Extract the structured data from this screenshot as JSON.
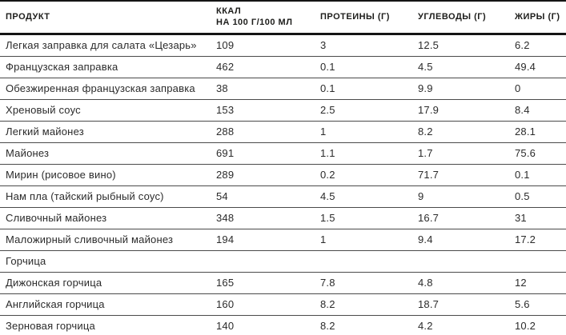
{
  "table": {
    "title": "nutrition-facts-table",
    "columns": [
      {
        "label": "ПРОДУКТ"
      },
      {
        "label": "ККАЛ\nНА 100 Г/100 МЛ"
      },
      {
        "label": "ПРОТЕИНЫ (Г)"
      },
      {
        "label": "УГЛЕВОДЫ (Г)"
      },
      {
        "label": "ЖИРЫ (Г)"
      }
    ],
    "rows": [
      {
        "product": "Легкая заправка для салата «Цезарь»",
        "kcal": "109",
        "protein": "3",
        "carbs": "12.5",
        "fat": "6.2"
      },
      {
        "product": "Французская заправка",
        "kcal": "462",
        "protein": "0.1",
        "carbs": "4.5",
        "fat": "49.4"
      },
      {
        "product": "Обезжиренная французская заправка",
        "kcal": "38",
        "protein": "0.1",
        "carbs": "9.9",
        "fat": "0"
      },
      {
        "product": "Хреновый соус",
        "kcal": "153",
        "protein": "2.5",
        "carbs": "17.9",
        "fat": "8.4"
      },
      {
        "product": "Легкий майонез",
        "kcal": "288",
        "protein": "1",
        "carbs": "8.2",
        "fat": "28.1"
      },
      {
        "product": "Майонез",
        "kcal": "691",
        "protein": "1.1",
        "carbs": "1.7",
        "fat": "75.6"
      },
      {
        "product": "Мирин (рисовое вино)",
        "kcal": "289",
        "protein": "0.2",
        "carbs": "71.7",
        "fat": "0.1"
      },
      {
        "product": "Нам пла (тайский рыбный соус)",
        "kcal": "54",
        "protein": "4.5",
        "carbs": "9",
        "fat": "0.5"
      },
      {
        "product": "Сливочный майонез",
        "kcal": "348",
        "protein": "1.5",
        "carbs": "16.7",
        "fat": "31"
      },
      {
        "product": "Маложирный сливочный майонез",
        "kcal": "194",
        "protein": "1",
        "carbs": "9.4",
        "fat": "17.2"
      },
      {
        "product": "Горчица",
        "kcal": "",
        "protein": "",
        "carbs": "",
        "fat": "",
        "section": true
      },
      {
        "product": "Дижонская горчица",
        "kcal": "165",
        "protein": "7.8",
        "carbs": "4.8",
        "fat": "12"
      },
      {
        "product": "Английская горчица",
        "kcal": "160",
        "protein": "8.2",
        "carbs": "18.7",
        "fat": "5.6"
      },
      {
        "product": "Зерновая горчица",
        "kcal": "140",
        "protein": "8.2",
        "carbs": "4.2",
        "fat": "10.2"
      }
    ],
    "colors": {
      "background": "#ffffff",
      "text": "#1d1d1b",
      "border_heavy": "#141414",
      "border_light": "#4a4a4a"
    }
  }
}
